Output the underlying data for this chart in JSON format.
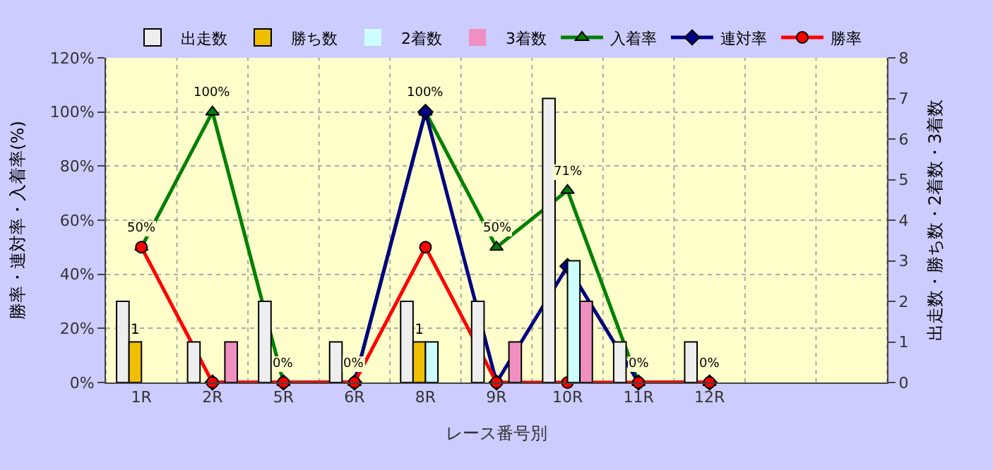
{
  "chart_data": {
    "type": "bar",
    "xlabel": "レース番号別",
    "ylabel": "勝率・連対率・入着率(%)",
    "y2label": "出走数・勝ち数・2着数・3着数",
    "categories": [
      "1R",
      "2R",
      "5R",
      "6R",
      "8R",
      "9R",
      "10R",
      "11R",
      "12R",
      null,
      null
    ],
    "series": [
      {
        "name": "出走数",
        "axis": "y2",
        "color": "#eeeeee",
        "values": [
          2,
          1,
          2,
          1,
          2,
          2,
          7,
          1,
          1,
          null,
          null
        ]
      },
      {
        "name": "勝ち数",
        "axis": "y2",
        "color": "#f0c000",
        "values": [
          1,
          0,
          0,
          0,
          1,
          0,
          0,
          0,
          0,
          null,
          null
        ],
        "value_labels": [
          "1",
          null,
          null,
          null,
          "1",
          null,
          null,
          null,
          null,
          null,
          null
        ]
      },
      {
        "name": "2着数",
        "axis": "y2",
        "color": "#ccffff",
        "values": [
          0,
          0,
          0,
          0,
          1,
          0,
          3,
          0,
          0,
          null,
          null
        ]
      },
      {
        "name": "3着数",
        "axis": "y2",
        "color": "#f090c0",
        "values": [
          0,
          1,
          0,
          0,
          0,
          1,
          2,
          0,
          0,
          null,
          null
        ]
      },
      {
        "name": "入着率",
        "type": "line",
        "marker": "triangle",
        "color": "#008000",
        "values": [
          50,
          100,
          0,
          0,
          100,
          50,
          71,
          0,
          0,
          null,
          null
        ],
        "value_labels": [
          "50%",
          "100%",
          "0%",
          "0%",
          "100%",
          "50%",
          "71%",
          "0%",
          "0%",
          null,
          null
        ]
      },
      {
        "name": "連対率",
        "type": "line",
        "marker": "diamond",
        "color": "#000080",
        "values": [
          null,
          0,
          0,
          0,
          100,
          0,
          43,
          0,
          0,
          null,
          null
        ]
      },
      {
        "name": "勝率",
        "type": "line",
        "marker": "circle",
        "color": "#ff0000",
        "values": [
          50,
          0,
          0,
          0,
          50,
          0,
          0,
          0,
          0,
          null,
          null
        ]
      }
    ],
    "ylim": [
      0,
      120
    ],
    "yticks": [
      {
        "value": 0,
        "label": "0%"
      },
      {
        "value": 20,
        "label": "20%"
      },
      {
        "value": 40,
        "label": "40%"
      },
      {
        "value": 60,
        "label": "60%"
      },
      {
        "value": 80,
        "label": "80%"
      },
      {
        "value": 100,
        "label": "100%"
      },
      {
        "value": 120,
        "label": "120%"
      }
    ],
    "y2lim": [
      0,
      8
    ],
    "y2ticks": [
      0,
      1,
      2,
      3,
      4,
      5,
      6,
      7,
      8
    ],
    "grid": true,
    "legend": "top"
  }
}
